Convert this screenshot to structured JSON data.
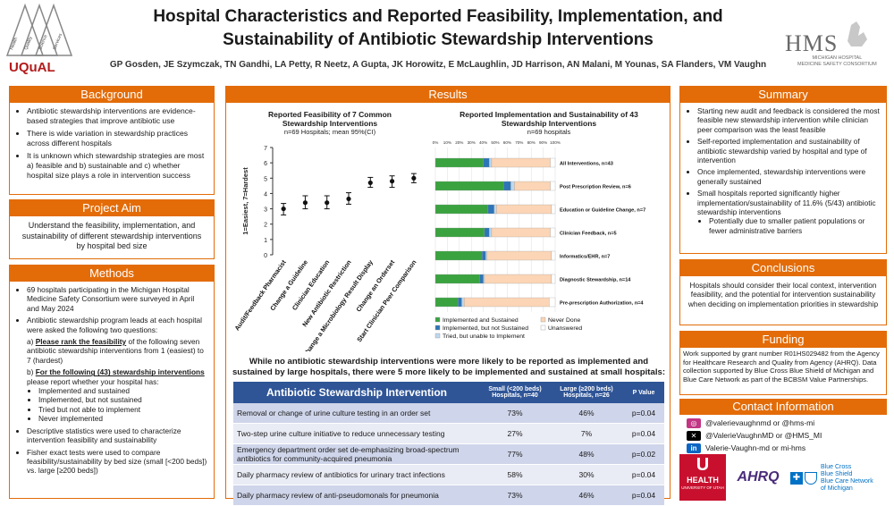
{
  "header": {
    "title_line1": "Hospital Characteristics and Reported Feasibility, Implementation, and",
    "title_line2": "Sustainability of Antibiotic Stewardship Interventions",
    "authors": "GP Gosden, JE Szymczak, TN Gandhi, LA Petty, R Neetz, A Gupta, JK Horowitz, E McLaughlin, JD Harrison, AN Malani, M Younas, SA Flanders, VM Vaughn",
    "uqual_logo": "UQuAL",
    "uqual_tri_words": [
      "Health",
      "Quality",
      "Science",
      "Services"
    ],
    "hms_logo": "HMS",
    "hms_sub_1": "MICHIGAN HOSPITAL",
    "hms_sub_2": "MEDICINE SAFETY CONSORTIUM"
  },
  "background": {
    "heading": "Background",
    "items": [
      "Antibiotic stewardship interventions are evidence-based strategies that improve antibiotic use",
      "There is wide variation in stewardship practices across different hospitals",
      "It is unknown which stewardship strategies are most a) feasible and b) sustainable and c) whether hospital size plays a role in intervention success"
    ]
  },
  "aim": {
    "heading": "Project Aim",
    "text": "Understand the feasibility, implementation, and sustainability of different stewardship interventions by hospital bed size"
  },
  "methods": {
    "heading": "Methods",
    "item1": "69 hospitals participating in the Michigan Hospital Medicine Safety Consortium were surveyed in April and May 2024",
    "item2": "Antibiotic stewardship program leads at each hospital were asked the following two questions:",
    "q_a_prefix": "a)",
    "q_a_bold": "Please rank the feasibility",
    "q_a_rest": "of the following seven antibiotic stewardship interventions from 1 (easiest) to 7 (hardest)",
    "q_b_prefix": "b)",
    "q_b_bold": "For the following (43) stewardship interventions",
    "q_b_rest": "please report whether your hospital has:",
    "options": [
      "Implemented and sustained",
      "Implemented, but not sustained",
      "Tried but not able to implement",
      "Never implemented"
    ],
    "item3": "Descriptive statistics were used to characterize intervention feasibility and sustainability",
    "item4": "Fisher exact tests were used to compare feasibility/sustainability by bed size (small [<200 beds]) vs. large [≥200 beds])"
  },
  "results": {
    "heading": "Results",
    "statement_line1": "While no antibiotic stewardship interventions were more likely to be reported as implemented and",
    "statement_line2": "sustained  by large hospitals, there were 5 more likely to be implemented and sustained at small hospitals:",
    "table": {
      "col1": "Antibiotic Stewardship Intervention",
      "col2_line1": "Small (<200 beds)",
      "col2_line2": "Hospitals, n=40",
      "col3_line1": "Large (≥200 beds)",
      "col3_line2": "Hospitals, n=26",
      "col4": "P Value",
      "rows": [
        {
          "name": "Removal or change of urine culture testing in an order set",
          "small": "73%",
          "large": "46%",
          "p": "p=0.04"
        },
        {
          "name": "Two-step urine culture initiative to reduce unnecessary testing",
          "small": "27%",
          "large": "7%",
          "p": "p=0.04"
        },
        {
          "name": "Emergency department order set de-emphasizing broad-spectrum antibiotics for community-acquired pneumonia",
          "small": "77%",
          "large": "48%",
          "p": "p=0.02"
        },
        {
          "name": "Daily pharmacy review of antibiotics for urinary tract infections",
          "small": "58%",
          "large": "30%",
          "p": "p=0.04"
        },
        {
          "name": "Daily pharmacy review of anti-pseudomonals for pneumonia",
          "small": "73%",
          "large": "46%",
          "p": "p=0.04"
        }
      ]
    }
  },
  "summary": {
    "heading": "Summary",
    "items": [
      "Starting new audit and feedback is considered the most feasible new stewardship intervention while clinician peer comparison was the least feasible",
      "Self-reported implementation and sustainability of antibiotic stewardship varied by hospital and type of intervention",
      "Once implemented, stewardship interventions were generally sustained",
      "Small hospitals reported significantly higher implementation/sustainability of 11.6% (5/43) antibiotic stewardship interventions"
    ],
    "subitem": "Potentially due to smaller patient populations or fewer administrative barriers"
  },
  "conclusions": {
    "heading": "Conclusions",
    "text": "Hospitals should consider their local context, intervention feasibility, and the potential for intervention sustainability when deciding on implementation priorities in stewardship"
  },
  "funding": {
    "heading": "Funding",
    "text": "Work supported by grant number R01HS029482 from the Agency for Healthcare Research and Quality from Agency (AHRQ). Data collection supported by Blue Cross Blue Shield of Michigan and Blue Care Network as part of the BCBSM Value Partnerships."
  },
  "contact": {
    "heading": "Contact Information",
    "rows": [
      "@valerievaughnmd or @hms-mi",
      "@ValerieVaughnMD or @HMS_MI",
      "Valerie-Vaughn-md or mi-hms"
    ]
  },
  "footer_logos": {
    "u_health": "HEALTH",
    "u_sub": "UNIVERSITY OF UTAH",
    "ahrq": "AHRQ",
    "bcbs_1": "Blue Cross",
    "bcbs_2": "Blue Shield",
    "bcbs_3": "Blue Care Network",
    "bcbs_4": "of Michigan"
  },
  "colors": {
    "accent": "#e36c09",
    "table_header": "#2f5597",
    "green": "#3aa340",
    "blue": "#2e75b6",
    "light_blue": "#bdd7ee",
    "peach": "#fbd5b5"
  },
  "chart_data": [
    {
      "type": "scatter",
      "title_line1": "Reported Feasibility of 7 Common",
      "title_line2": "Stewardship Interventions",
      "subtitle": "n=69 Hospitals; mean 95%(CI)",
      "ylabel": "1=Easiest, 7=Hardest",
      "ylim": [
        0,
        7
      ],
      "yticks": [
        "0",
        "1",
        "2",
        "3",
        "4",
        "5",
        "6",
        "7"
      ],
      "categories": [
        "Audit/Feedback Pharmacist",
        "Change a Guideline",
        "Clinician Education",
        "New Antibiotic Restriction",
        "Change a Microbiology Result Display",
        "Change an Orderset",
        "Start Clinician Peer Comparison"
      ],
      "means": [
        3.0,
        3.4,
        3.4,
        3.65,
        4.7,
        4.8,
        5.0
      ],
      "ci_low": [
        2.6,
        3.0,
        3.0,
        3.3,
        4.4,
        4.4,
        4.7
      ],
      "ci_high": [
        3.35,
        3.85,
        3.85,
        4.05,
        5.05,
        5.15,
        5.3
      ]
    },
    {
      "type": "bar",
      "stacked": true,
      "orientation": "horizontal",
      "title_line1": "Reported Implementation and Sustainability of 43",
      "title_line2": "Stewardship Interventions",
      "subtitle": "n=69 hospitals",
      "xticks": [
        "0%",
        "10%",
        "20%",
        "30%",
        "40%",
        "50%",
        "60%",
        "70%",
        "80%",
        "90%",
        "100%"
      ],
      "categories": [
        "All Interventions, n=43",
        "Post Prescription Review, n=6",
        "Education or Guideline Change, n=7",
        "Clinician Feedback, n=5",
        "Informatics/EHR, n=7",
        "Diagnostic Stewardship, n=14",
        "Pre-prescription Authorization, n=4"
      ],
      "series": [
        {
          "name": "Implemented and Sustained",
          "color": "#3aa340",
          "values": [
            40,
            57,
            44,
            41,
            39,
            37,
            19
          ]
        },
        {
          "name": "Implemented, but not Sustained",
          "color": "#2e75b6",
          "values": [
            5,
            6,
            5,
            4,
            3,
            3,
            3
          ]
        },
        {
          "name": "Tried, but unable to Implement",
          "color": "#bdd7ee",
          "values": [
            2,
            3,
            2,
            2,
            1,
            1,
            2
          ]
        },
        {
          "name": "Never Done",
          "color": "#fbd5b5",
          "values": [
            49,
            30,
            46,
            49,
            54,
            56,
            71
          ]
        },
        {
          "name": "Unanswered",
          "color": "#ffffff",
          "values": [
            4,
            4,
            3,
            4,
            3,
            3,
            5
          ]
        }
      ],
      "legend": "bottom"
    }
  ]
}
